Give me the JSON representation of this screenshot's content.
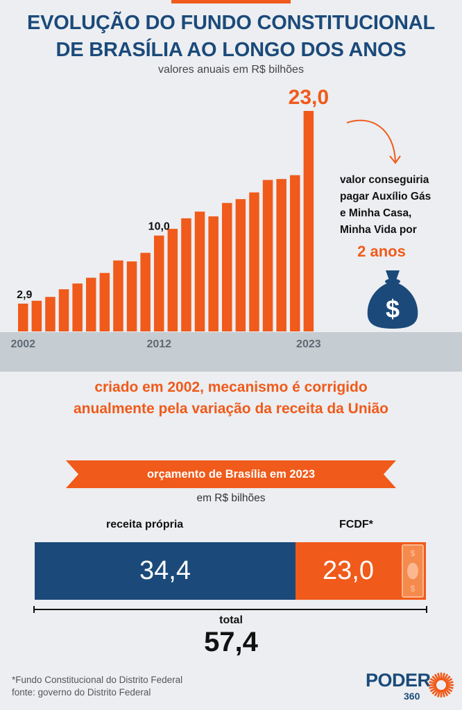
{
  "title_line1": "EVOLUÇÃO DO FUNDO CONSTITUCIONAL",
  "title_line2": "DE BRASÍLIA AO LONGO DOS ANOS",
  "subtitle": "valores anuais em R$ bilhões",
  "colors": {
    "orange": "#f05a1a",
    "navy": "#1b4a7a",
    "background": "#eceef1",
    "ground": "#c5ccd2"
  },
  "chart_data": {
    "type": "bar",
    "title": "EVOLUÇÃO DO FUNDO CONSTITUCIONAL DE BRASÍLIA AO LONGO DOS ANOS",
    "ylabel": "valores anuais em R$ bilhões",
    "categories": [
      "2002",
      "2003",
      "2004",
      "2005",
      "2006",
      "2007",
      "2008",
      "2009",
      "2010",
      "2011",
      "2012",
      "2013",
      "2014",
      "2015",
      "2016",
      "2017",
      "2018",
      "2019",
      "2020",
      "2021",
      "2022",
      "2023"
    ],
    "values": [
      2.9,
      3.2,
      3.6,
      4.4,
      5.0,
      5.6,
      6.1,
      7.4,
      7.3,
      8.2,
      10.0,
      10.7,
      11.8,
      12.5,
      12.0,
      13.4,
      13.8,
      14.5,
      15.8,
      15.9,
      16.3,
      23.0
    ],
    "tick_labels": [
      {
        "index": 0,
        "text": "2002"
      },
      {
        "index": 10,
        "text": "2012"
      },
      {
        "index": 21,
        "text": "2023"
      }
    ],
    "value_labels": [
      {
        "index": 0,
        "text": "2,9"
      },
      {
        "index": 10,
        "text": "10,0"
      },
      {
        "index": 21,
        "text": "23,0"
      }
    ],
    "ylim": [
      0,
      23.0
    ],
    "grid": false
  },
  "annotation": {
    "lines": [
      "valor conseguiria",
      "pagar Auxílio Gás",
      "e Minha Casa,",
      "Minha Vida por"
    ],
    "highlight": "2 anos",
    "icon": "money-bag-icon"
  },
  "note_line1": "criado em 2002, mecanismo é corrigido",
  "note_line2": "anualmente pela variação da receita da União",
  "budget": {
    "ribbon_title": "orçamento de Brasília em 2023",
    "unit": "em R$ bilhões",
    "own_revenue": {
      "label": "receita própria",
      "value": 34.4,
      "value_text": "34,4"
    },
    "fcdf": {
      "label": "FCDF*",
      "value": 23.0,
      "value_text": "23,0"
    },
    "total_label": "total",
    "total_text": "57,4"
  },
  "footnote_line1": "*Fundo Constitucional do Distrito Federal",
  "footnote_line2": "fonte: governo do Distrito Federal",
  "logo": {
    "word": "PODER",
    "number": "360"
  }
}
